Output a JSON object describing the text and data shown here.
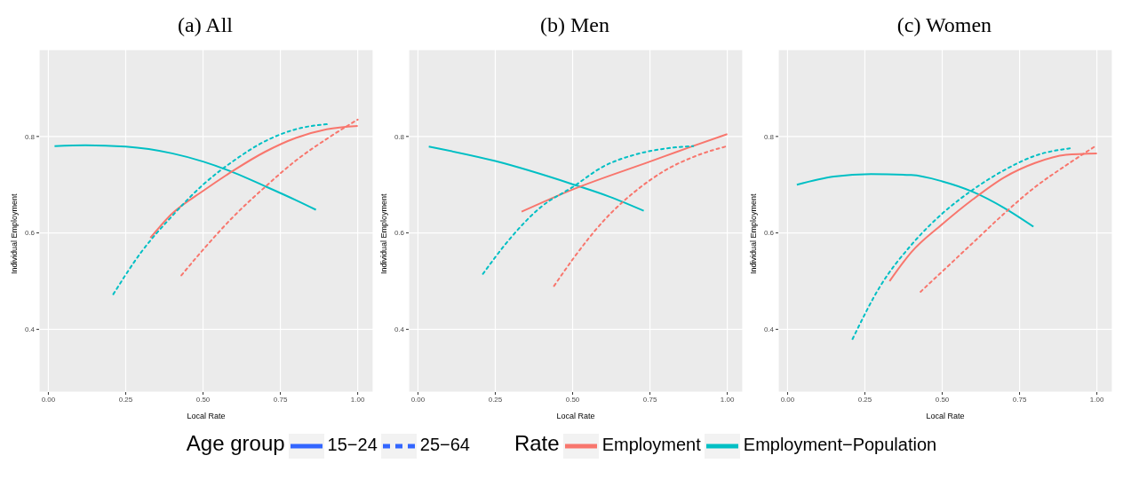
{
  "chart_data": [
    {
      "type": "line",
      "title": "(a) All",
      "xlabel": "Local Rate",
      "ylabel": "Individual Employment",
      "xlim": [
        -0.03,
        1.05
      ],
      "ylim": [
        0.27,
        0.98
      ],
      "xticks": [
        {
          "value": 0,
          "label": "0.00"
        },
        {
          "value": 0.25,
          "label": "0.25"
        },
        {
          "value": 0.5,
          "label": "0.50"
        },
        {
          "value": 0.75,
          "label": "0.75"
        },
        {
          "value": 1,
          "label": "1.00"
        }
      ],
      "yticks": [
        0.4,
        0.6,
        0.8
      ],
      "grid": true,
      "marker": "none",
      "series": [
        {
          "color": "#00bfc4",
          "line_style": "solid",
          "x": [
            0.02,
            0.12,
            0.25,
            0.4,
            0.5,
            0.6,
            0.7,
            0.8,
            0.865
          ],
          "values": [
            0.78,
            0.782,
            0.779,
            0.765,
            0.748,
            0.725,
            0.697,
            0.668,
            0.648
          ]
        },
        {
          "color": "#f8766d",
          "line_style": "solid",
          "x": [
            0.33,
            0.4,
            0.5,
            0.6,
            0.7,
            0.8,
            0.9,
            1.0
          ],
          "values": [
            0.59,
            0.64,
            0.687,
            0.73,
            0.768,
            0.797,
            0.815,
            0.822
          ]
        },
        {
          "color": "#00bfc4",
          "line_style": "dashed",
          "x": [
            0.21,
            0.3,
            0.4,
            0.5,
            0.6,
            0.7,
            0.8,
            0.91
          ],
          "values": [
            0.473,
            0.56,
            0.635,
            0.7,
            0.75,
            0.79,
            0.815,
            0.826
          ]
        },
        {
          "color": "#f8766d",
          "line_style": "dashed",
          "x": [
            0.43,
            0.5,
            0.6,
            0.7,
            0.8,
            0.9,
            1.0
          ],
          "values": [
            0.512,
            0.565,
            0.635,
            0.695,
            0.75,
            0.795,
            0.835
          ]
        }
      ]
    },
    {
      "type": "line",
      "title": "(b) Men",
      "xlabel": "Local Rate",
      "ylabel": "Individual Employment",
      "xlim": [
        -0.03,
        1.05
      ],
      "ylim": [
        0.27,
        0.98
      ],
      "xticks": [
        {
          "value": 0,
          "label": "0.00"
        },
        {
          "value": 0.25,
          "label": "0.25"
        },
        {
          "value": 0.5,
          "label": "0.50"
        },
        {
          "value": 0.75,
          "label": "0.75"
        },
        {
          "value": 1,
          "label": "1.00"
        }
      ],
      "yticks": [
        0.4,
        0.6,
        0.8
      ],
      "grid": true,
      "marker": "none",
      "annotations": [
        "Age group",
        "15−24",
        "25−64",
        "Rate",
        "Employment",
        "Employment−Population"
      ],
      "series": [
        {
          "color": "#00bfc4",
          "line_style": "solid",
          "x": [
            0.035,
            0.25,
            0.5,
            0.62,
            0.73
          ],
          "values": [
            0.779,
            0.749,
            0.701,
            0.675,
            0.646
          ]
        },
        {
          "color": "#f8766d",
          "line_style": "solid",
          "x": [
            0.335,
            0.5,
            0.75,
            0.875,
            1.0
          ],
          "values": [
            0.644,
            0.69,
            0.748,
            0.777,
            0.805
          ]
        },
        {
          "color": "#00bfc4",
          "line_style": "dashed",
          "x": [
            0.21,
            0.3,
            0.4,
            0.5,
            0.6,
            0.7,
            0.8,
            0.89
          ],
          "values": [
            0.515,
            0.59,
            0.655,
            0.695,
            0.738,
            0.762,
            0.775,
            0.78
          ]
        },
        {
          "color": "#f8766d",
          "line_style": "dashed",
          "x": [
            0.44,
            0.5,
            0.6,
            0.7,
            0.8,
            0.9,
            1.0
          ],
          "values": [
            0.49,
            0.545,
            0.625,
            0.685,
            0.73,
            0.76,
            0.78
          ]
        }
      ]
    },
    {
      "type": "line",
      "title": "(c) Women",
      "xlabel": "Local Rate",
      "ylabel": "Individual Employment",
      "xlim": [
        -0.03,
        1.05
      ],
      "ylim": [
        0.27,
        0.98
      ],
      "xticks": [
        {
          "value": 0,
          "label": "0.00"
        },
        {
          "value": 0.25,
          "label": "0.25"
        },
        {
          "value": 0.5,
          "label": "0.50"
        },
        {
          "value": 0.75,
          "label": "0.75"
        },
        {
          "value": 1,
          "label": "1.00"
        }
      ],
      "yticks": [
        0.4,
        0.6,
        0.8
      ],
      "grid": true,
      "marker": "none",
      "series": [
        {
          "color": "#00bfc4",
          "line_style": "solid",
          "x": [
            0.03,
            0.15,
            0.27,
            0.4,
            0.5,
            0.6,
            0.7,
            0.795
          ],
          "values": [
            0.7,
            0.717,
            0.722,
            0.72,
            0.707,
            0.685,
            0.652,
            0.613
          ]
        },
        {
          "color": "#f8766d",
          "line_style": "solid",
          "x": [
            0.33,
            0.4,
            0.5,
            0.6,
            0.7,
            0.8,
            0.9,
            1.0
          ],
          "values": [
            0.5,
            0.56,
            0.618,
            0.67,
            0.715,
            0.745,
            0.762,
            0.765
          ]
        },
        {
          "color": "#00bfc4",
          "line_style": "dashed",
          "x": [
            0.21,
            0.3,
            0.4,
            0.5,
            0.6,
            0.7,
            0.8,
            0.92
          ],
          "values": [
            0.38,
            0.49,
            0.575,
            0.64,
            0.69,
            0.73,
            0.76,
            0.776
          ]
        },
        {
          "color": "#f8766d",
          "line_style": "dashed",
          "x": [
            0.43,
            0.5,
            0.6,
            0.7,
            0.8,
            0.9,
            1.0
          ],
          "values": [
            0.478,
            0.52,
            0.58,
            0.64,
            0.695,
            0.74,
            0.782
          ]
        }
      ]
    }
  ]
}
